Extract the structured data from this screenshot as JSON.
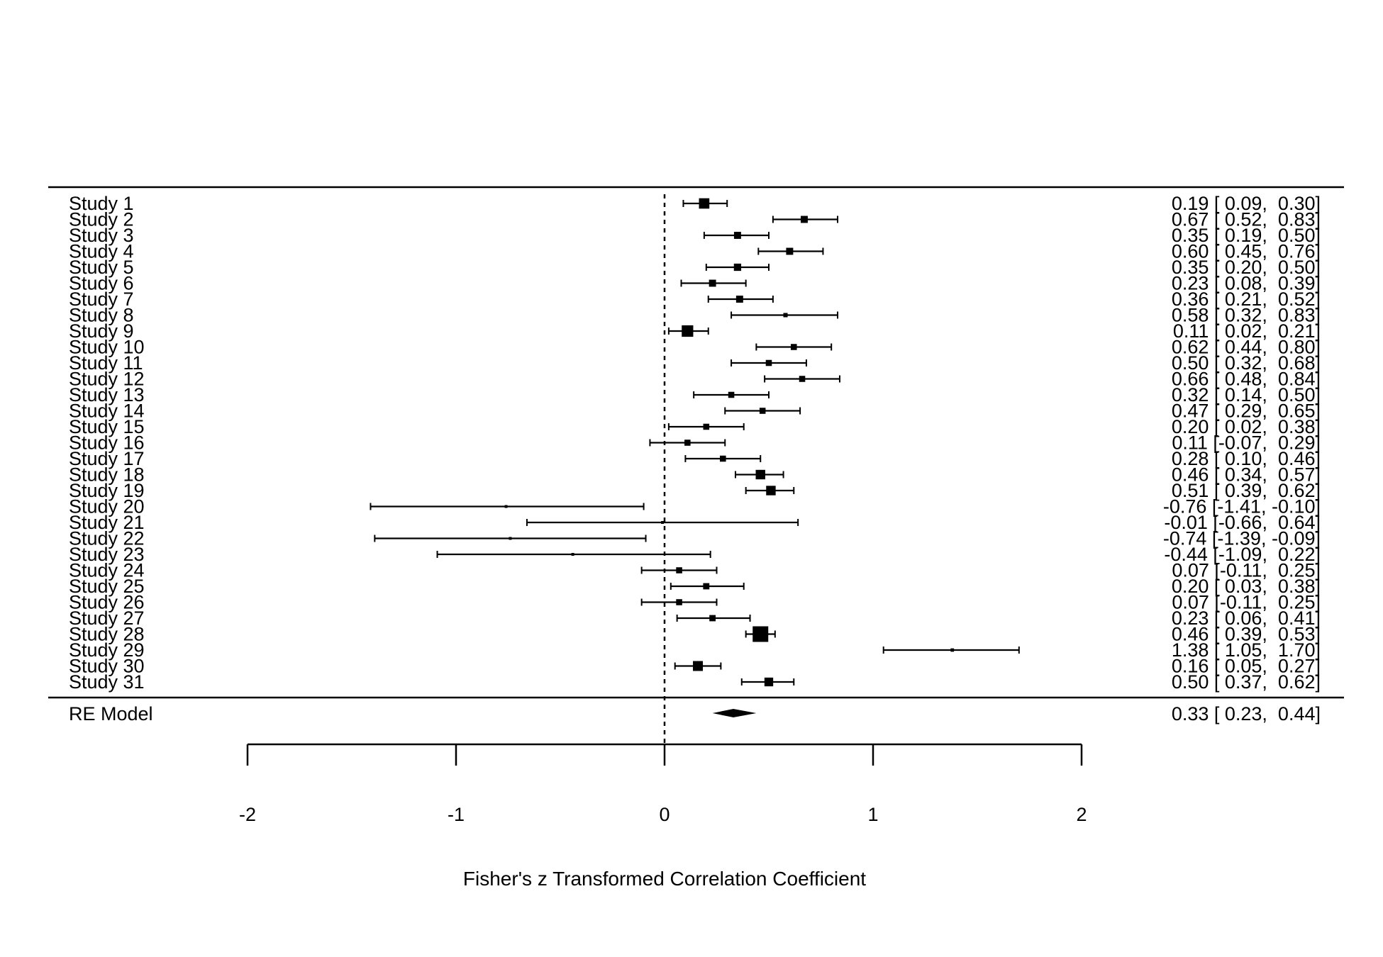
{
  "chart_data": {
    "type": "forest",
    "xlabel": "Fisher's z Transformed Correlation Coefficient",
    "xlim": [
      -2,
      2
    ],
    "xticks": [
      -2,
      -1,
      0,
      1,
      2
    ],
    "xtick_labels": [
      "-2",
      "-1",
      "0",
      "1",
      "2"
    ],
    "reference_line": 0,
    "studies": [
      {
        "label": "Study 1",
        "est": 0.19,
        "lo": 0.09,
        "hi": 0.3,
        "text": "0.19 [ 0.09,  0.30]"
      },
      {
        "label": "Study 2",
        "est": 0.67,
        "lo": 0.52,
        "hi": 0.83,
        "text": "0.67 [ 0.52,  0.83]"
      },
      {
        "label": "Study 3",
        "est": 0.35,
        "lo": 0.19,
        "hi": 0.5,
        "text": "0.35 [ 0.19,  0.50]"
      },
      {
        "label": "Study 4",
        "est": 0.6,
        "lo": 0.45,
        "hi": 0.76,
        "text": "0.60 [ 0.45,  0.76]"
      },
      {
        "label": "Study 5",
        "est": 0.35,
        "lo": 0.2,
        "hi": 0.5,
        "text": "0.35 [ 0.20,  0.50]"
      },
      {
        "label": "Study 6",
        "est": 0.23,
        "lo": 0.08,
        "hi": 0.39,
        "text": "0.23 [ 0.08,  0.39]"
      },
      {
        "label": "Study 7",
        "est": 0.36,
        "lo": 0.21,
        "hi": 0.52,
        "text": "0.36 [ 0.21,  0.52]"
      },
      {
        "label": "Study 8",
        "est": 0.58,
        "lo": 0.32,
        "hi": 0.83,
        "text": "0.58 [ 0.32,  0.83]"
      },
      {
        "label": "Study 9",
        "est": 0.11,
        "lo": 0.02,
        "hi": 0.21,
        "text": "0.11 [ 0.02,  0.21]"
      },
      {
        "label": "Study 10",
        "est": 0.62,
        "lo": 0.44,
        "hi": 0.8,
        "text": "0.62 [ 0.44,  0.80]"
      },
      {
        "label": "Study 11",
        "est": 0.5,
        "lo": 0.32,
        "hi": 0.68,
        "text": "0.50 [ 0.32,  0.68]"
      },
      {
        "label": "Study 12",
        "est": 0.66,
        "lo": 0.48,
        "hi": 0.84,
        "text": "0.66 [ 0.48,  0.84]"
      },
      {
        "label": "Study 13",
        "est": 0.32,
        "lo": 0.14,
        "hi": 0.5,
        "text": "0.32 [ 0.14,  0.50]"
      },
      {
        "label": "Study 14",
        "est": 0.47,
        "lo": 0.29,
        "hi": 0.65,
        "text": "0.47 [ 0.29,  0.65]"
      },
      {
        "label": "Study 15",
        "est": 0.2,
        "lo": 0.02,
        "hi": 0.38,
        "text": "0.20 [ 0.02,  0.38]"
      },
      {
        "label": "Study 16",
        "est": 0.11,
        "lo": -0.07,
        "hi": 0.29,
        "text": "0.11 [-0.07,  0.29]"
      },
      {
        "label": "Study 17",
        "est": 0.28,
        "lo": 0.1,
        "hi": 0.46,
        "text": "0.28 [ 0.10,  0.46]"
      },
      {
        "label": "Study 18",
        "est": 0.46,
        "lo": 0.34,
        "hi": 0.57,
        "text": "0.46 [ 0.34,  0.57]"
      },
      {
        "label": "Study 19",
        "est": 0.51,
        "lo": 0.39,
        "hi": 0.62,
        "text": "0.51 [ 0.39,  0.62]"
      },
      {
        "label": "Study 20",
        "est": -0.76,
        "lo": -1.41,
        "hi": -0.1,
        "text": "-0.76 [-1.41, -0.10]"
      },
      {
        "label": "Study 21",
        "est": -0.01,
        "lo": -0.66,
        "hi": 0.64,
        "text": "-0.01 [-0.66,  0.64]"
      },
      {
        "label": "Study 22",
        "est": -0.74,
        "lo": -1.39,
        "hi": -0.09,
        "text": "-0.74 [-1.39, -0.09]"
      },
      {
        "label": "Study 23",
        "est": -0.44,
        "lo": -1.09,
        "hi": 0.22,
        "text": "-0.44 [-1.09,  0.22]"
      },
      {
        "label": "Study 24",
        "est": 0.07,
        "lo": -0.11,
        "hi": 0.25,
        "text": "0.07 [-0.11,  0.25]"
      },
      {
        "label": "Study 25",
        "est": 0.2,
        "lo": 0.03,
        "hi": 0.38,
        "text": "0.20 [ 0.03,  0.38]"
      },
      {
        "label": "Study 26",
        "est": 0.07,
        "lo": -0.11,
        "hi": 0.25,
        "text": "0.07 [-0.11,  0.25]"
      },
      {
        "label": "Study 27",
        "est": 0.23,
        "lo": 0.06,
        "hi": 0.41,
        "text": "0.23 [ 0.06,  0.41]"
      },
      {
        "label": "Study 28",
        "est": 0.46,
        "lo": 0.39,
        "hi": 0.53,
        "text": "0.46 [ 0.39,  0.53]"
      },
      {
        "label": "Study 29",
        "est": 1.38,
        "lo": 1.05,
        "hi": 1.7,
        "text": "1.38 [ 1.05,  1.70]"
      },
      {
        "label": "Study 30",
        "est": 0.16,
        "lo": 0.05,
        "hi": 0.27,
        "text": "0.16 [ 0.05,  0.27]"
      },
      {
        "label": "Study 31",
        "est": 0.5,
        "lo": 0.37,
        "hi": 0.62,
        "text": "0.50 [ 0.37,  0.62]"
      }
    ],
    "summary": {
      "label": "RE Model",
      "est": 0.33,
      "lo": 0.23,
      "hi": 0.44,
      "text": "0.33 [ 0.23,  0.44]"
    }
  }
}
